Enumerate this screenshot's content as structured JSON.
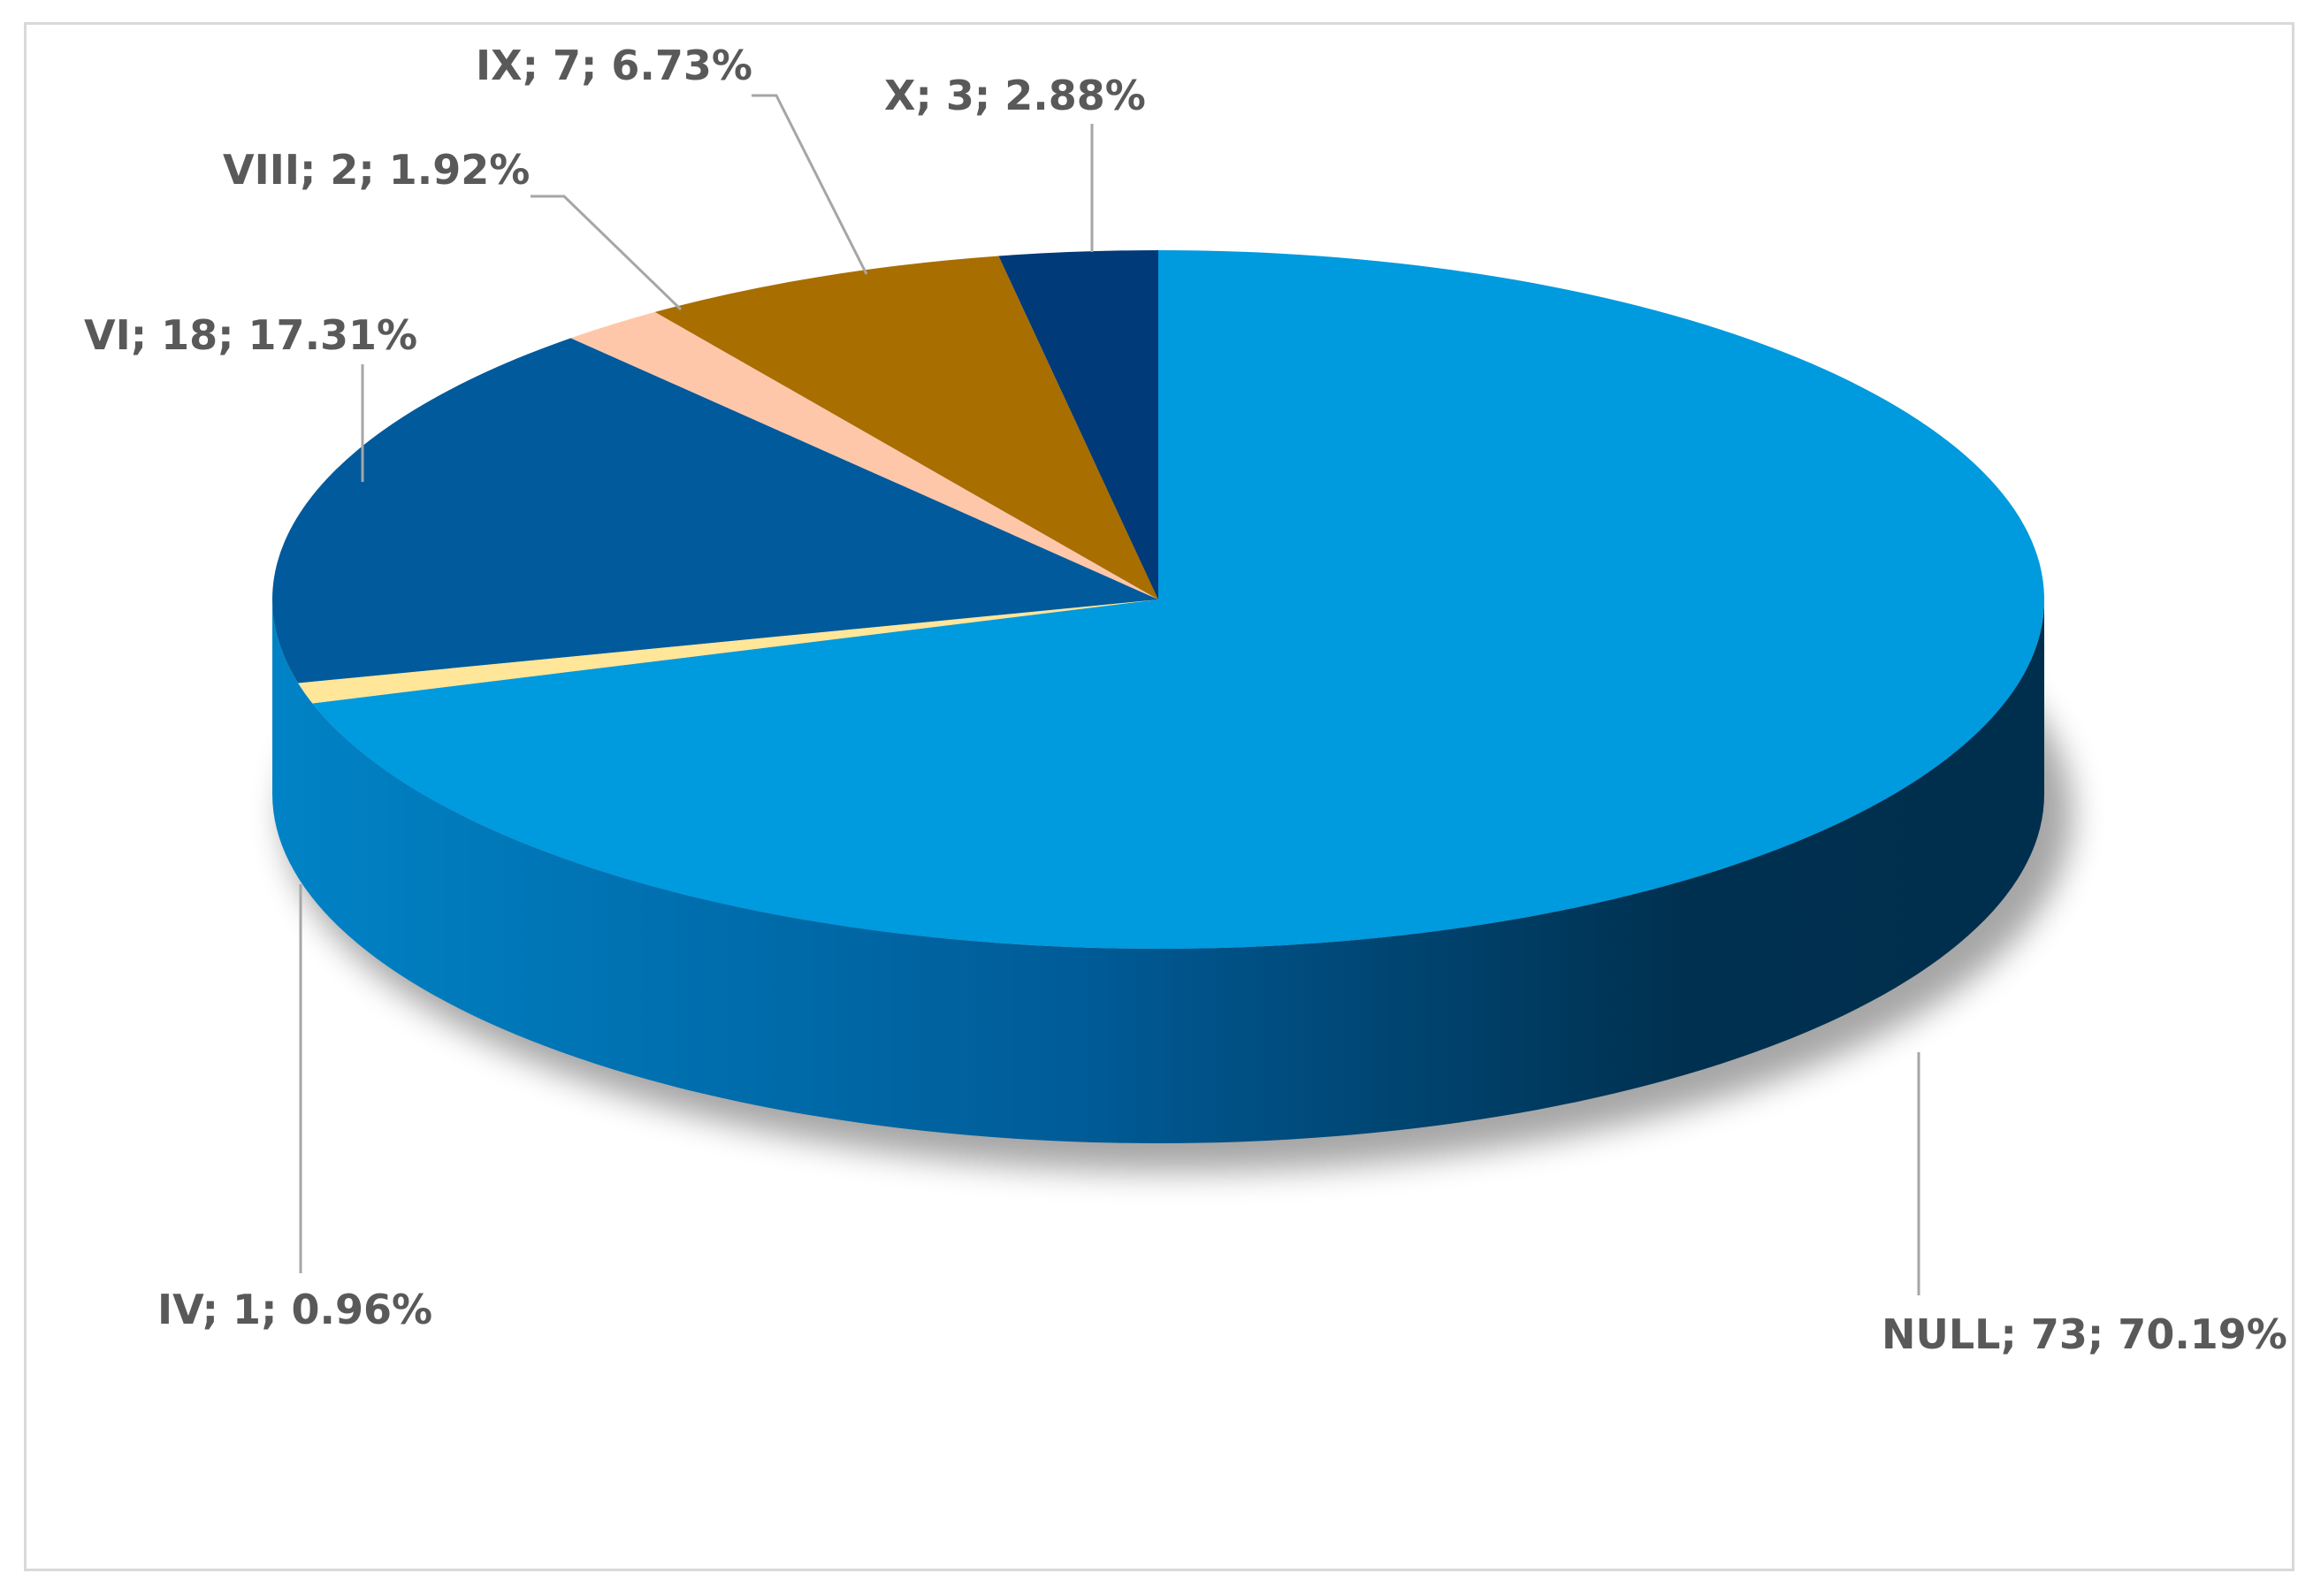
{
  "chart_data": {
    "type": "pie",
    "style": "3d",
    "title": "",
    "legend": "none",
    "label_format": "category; value; percentage",
    "slices": [
      {
        "category": "NULL",
        "value": 73,
        "percent": "70.19%",
        "color": "#009ade",
        "label": "NULL; 73; 70.19%"
      },
      {
        "category": "IV",
        "value": 1,
        "percent": "0.96%",
        "color": "#ffe699",
        "label": "IV; 1; 0.96%"
      },
      {
        "category": "VI",
        "value": 18,
        "percent": "17.31%",
        "color": "#005a9c",
        "label": "VI; 18; 17.31%"
      },
      {
        "category": "VIII",
        "value": 2,
        "percent": "1.92%",
        "color": "#ffc7aa",
        "label": "VIII; 2; 1.92%"
      },
      {
        "category": "IX",
        "value": 7,
        "percent": "6.73%",
        "color": "#a86e00",
        "label": "IX; 7; 6.73%"
      },
      {
        "category": "X",
        "value": 3,
        "percent": "2.88%",
        "color": "#003a78",
        "label": "X; 3; 2.88%"
      }
    ]
  }
}
